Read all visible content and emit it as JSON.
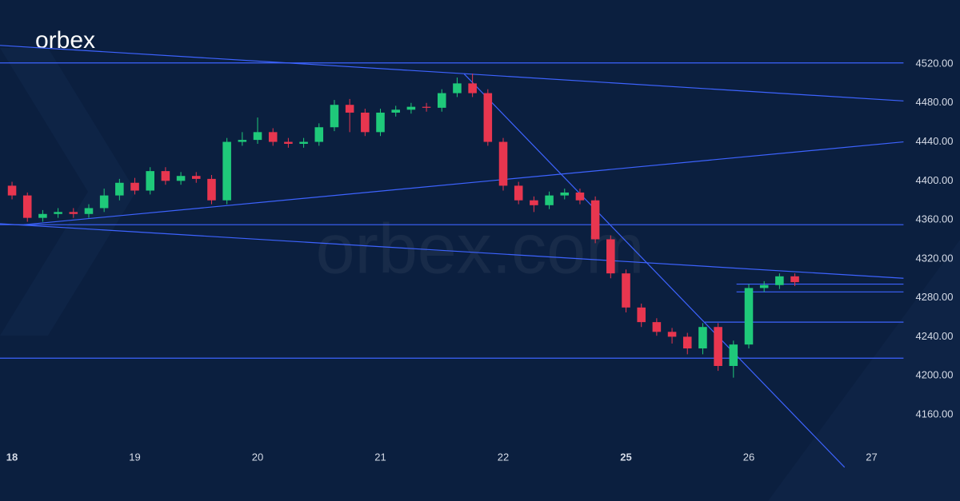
{
  "chart_data": {
    "type": "candlestick",
    "brand": "orbex",
    "watermark": "orbex.com",
    "xlim": [
      -0.098,
      7.72
    ],
    "ylim": [
      4071.4,
      4585.6
    ],
    "xticks": [
      {
        "value": 0,
        "label": "18"
      },
      {
        "value": 1,
        "label": "19"
      },
      {
        "value": 2,
        "label": "20"
      },
      {
        "value": 3,
        "label": "21"
      },
      {
        "value": 4,
        "label": "22"
      },
      {
        "value": 5,
        "label": "25"
      },
      {
        "value": 6,
        "label": "26"
      },
      {
        "value": 7,
        "label": "27"
      }
    ],
    "yticks": [
      {
        "value": 4520,
        "label": "4520.00"
      },
      {
        "value": 4480,
        "label": "4480.00"
      },
      {
        "value": 4440,
        "label": "4440.00"
      },
      {
        "value": 4400,
        "label": "4400.00"
      },
      {
        "value": 4360,
        "label": "4360.00"
      },
      {
        "value": 4320,
        "label": "4320.00"
      },
      {
        "value": 4280,
        "label": "4280.00"
      },
      {
        "value": 4240,
        "label": "4240.00"
      },
      {
        "value": 4200,
        "label": "4200.00"
      },
      {
        "value": 4160,
        "label": "4160.00"
      }
    ],
    "up_color": "#1fc97a",
    "down_color": "#e8364f",
    "line_color": "#3d63ff",
    "x": [
      0,
      0.125,
      0.25,
      0.375,
      0.5,
      0.625,
      0.75,
      0.875,
      1,
      1.125,
      1.25,
      1.375,
      1.5,
      1.625,
      1.75,
      1.875,
      2,
      2.125,
      2.25,
      2.375,
      2.5,
      2.625,
      2.75,
      2.875,
      3,
      3.125,
      3.25,
      3.375,
      3.5,
      3.625,
      3.75,
      3.875,
      4,
      4.125,
      4.25,
      4.375,
      4.5,
      4.625,
      4.75,
      4.875,
      5,
      5.125,
      5.25,
      5.375,
      5.5,
      5.625,
      5.75,
      5.875,
      6,
      6.125,
      6.25,
      6.375
    ],
    "open": [
      4395,
      4385,
      4362,
      4366,
      4368,
      4366,
      4372,
      4385,
      4398,
      4390,
      4410,
      4400,
      4405,
      4402,
      4380,
      4440,
      4442,
      4450,
      4440,
      4438,
      4440,
      4455,
      4478,
      4470,
      4450,
      4470,
      4473,
      4476,
      4475,
      4490,
      4500,
      4490,
      4440,
      4395,
      4380,
      4375,
      4385,
      4388,
      4380,
      4340,
      4305,
      4270,
      4255,
      4245,
      4240,
      4228,
      4250,
      4210,
      4232,
      4290,
      4293,
      4302
    ],
    "high": [
      4399,
      4388,
      4370,
      4372,
      4372,
      4376,
      4392,
      4402,
      4403,
      4414,
      4414,
      4409,
      4409,
      4406,
      4444,
      4450,
      4465,
      4454,
      4444,
      4444,
      4459,
      4483,
      4484,
      4474,
      4474,
      4477,
      4480,
      4480,
      4494,
      4506,
      4510,
      4494,
      4444,
      4399,
      4384,
      4389,
      4392,
      4392,
      4384,
      4344,
      4309,
      4274,
      4259,
      4249,
      4244,
      4254,
      4254,
      4236,
      4294,
      4297,
      4305,
      4305
    ],
    "low": [
      4381,
      4358,
      4358,
      4362,
      4362,
      4362,
      4368,
      4380,
      4386,
      4386,
      4396,
      4396,
      4398,
      4376,
      4376,
      4436,
      4438,
      4436,
      4434,
      4434,
      4436,
      4451,
      4450,
      4446,
      4446,
      4466,
      4469,
      4471,
      4471,
      4486,
      4486,
      4436,
      4390,
      4376,
      4368,
      4371,
      4381,
      4376,
      4336,
      4300,
      4265,
      4250,
      4241,
      4233,
      4222,
      4222,
      4205,
      4198,
      4228,
      4286,
      4289,
      4292
    ],
    "close": [
      4385,
      4362,
      4366,
      4368,
      4366,
      4372,
      4385,
      4398,
      4390,
      4410,
      4400,
      4405,
      4402,
      4380,
      4440,
      4442,
      4450,
      4440,
      4438,
      4440,
      4455,
      4478,
      4470,
      4450,
      4470,
      4473,
      4476,
      4475,
      4490,
      4500,
      4490,
      4440,
      4395,
      4380,
      4375,
      4385,
      4388,
      4380,
      4340,
      4305,
      4270,
      4255,
      4245,
      4240,
      4228,
      4250,
      4210,
      4232,
      4290,
      4293,
      4302,
      4296
    ],
    "lines": [
      {
        "x": [
          -0.098,
          7.26
        ],
        "y": [
          4521,
          4521
        ]
      },
      {
        "x": [
          -0.098,
          3.68
        ],
        "y": [
          4539,
          4510
        ]
      },
      {
        "x": [
          3.68,
          7.26
        ],
        "y": [
          4510,
          4482
        ]
      },
      {
        "x": [
          0.098,
          7.26
        ],
        "y": [
          4355,
          4440
        ]
      },
      {
        "x": [
          -0.098,
          7.26
        ],
        "y": [
          4356,
          4300
        ]
      },
      {
        "x": [
          -0.098,
          7.26
        ],
        "y": [
          4355,
          4355
        ]
      },
      {
        "x": [
          3.68,
          6.78
        ],
        "y": [
          4510,
          4106
        ]
      },
      {
        "x": [
          5.9,
          7.26
        ],
        "y": [
          4294,
          4294
        ]
      },
      {
        "x": [
          5.9,
          7.26
        ],
        "y": [
          4286,
          4286
        ]
      },
      {
        "x": [
          5.64,
          7.26
        ],
        "y": [
          4255,
          4255
        ]
      },
      {
        "x": [
          -0.098,
          7.26
        ],
        "y": [
          4218,
          4218
        ]
      }
    ]
  }
}
